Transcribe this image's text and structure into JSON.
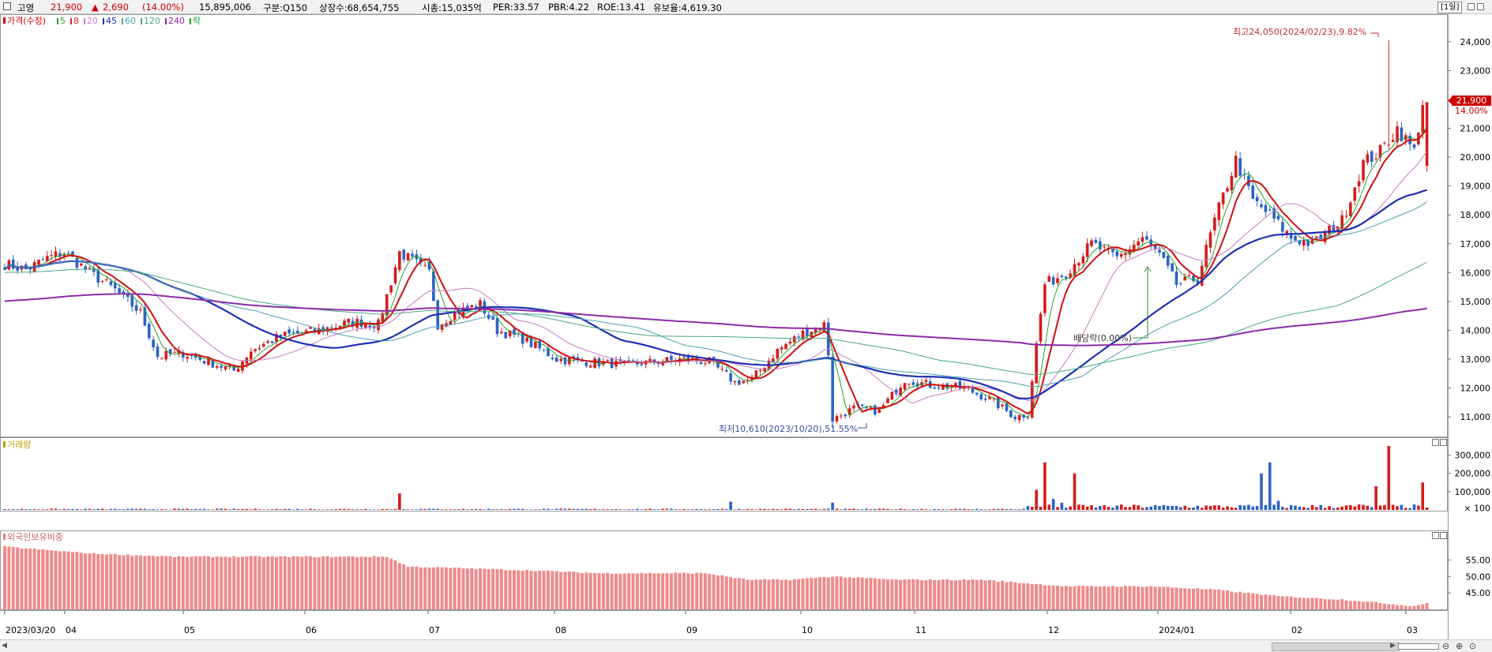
{
  "header": {
    "name": "고영",
    "price": "21,900",
    "change_arrow": "▲",
    "change": "2,690",
    "change_pct": "(14.00%)",
    "volume": "15,895,006",
    "market": "구분:Q150",
    "shares": "상장수:68,654,755",
    "cap": "시총:15,035억",
    "per": "PER:33.57",
    "pbr": "PBR:4.22",
    "roe": "ROE:13.41",
    "float": "유보율:4,619.30",
    "period": "[1일]"
  },
  "price_legend": {
    "main": "가격(수정)",
    "items": [
      {
        "label": "5",
        "color": "#2ca02c"
      },
      {
        "label": "8",
        "color": "#d62728"
      },
      {
        "label": "20",
        "color": "#c77cc3"
      },
      {
        "label": "45",
        "color": "#1f2fb4"
      },
      {
        "label": "60",
        "color": "#4a9fb0"
      },
      {
        "label": "120",
        "color": "#4aa882"
      },
      {
        "label": "240",
        "color": "#8b2ca8"
      },
      {
        "label": "락",
        "color": "#2ca02c"
      }
    ]
  },
  "volume_legend": "거래량",
  "foreign_legend": "외국인보유비중",
  "annotations": {
    "high": "최고24,050(2024/02/23),9.82%",
    "low": "최저10,610(2023/10/20),51.55%",
    "dividend": "배당락(0.00%)"
  },
  "last_price_label": "21,900",
  "last_pct_label": "14.00%",
  "chart_data": [
    {
      "type": "candlestick",
      "title": "가격(수정)",
      "ylim": [
        10400,
        24900
      ],
      "y_ticks": [
        11000,
        12000,
        13000,
        14000,
        15000,
        16000,
        17000,
        18000,
        19000,
        20000,
        21000,
        23000,
        24000
      ],
      "y_tick_labels": [
        "11,000",
        "12,000",
        "13,000",
        "14,000",
        "15,000",
        "16,000",
        "17,000",
        "18,000",
        "19,000",
        "20,000",
        "21,000",
        "23,000",
        "24,000"
      ],
      "x_tick_labels": [
        "2023/03/20",
        "04",
        "05",
        "06",
        "07",
        "08",
        "09",
        "10",
        "11",
        "12",
        "2024/01",
        "02",
        "03"
      ],
      "moving_averages": [
        5,
        8,
        20,
        45,
        60,
        120,
        240
      ],
      "close_path": [
        [
          0,
          16300
        ],
        [
          5,
          16100
        ],
        [
          10,
          16500
        ],
        [
          14,
          16700
        ],
        [
          20,
          16000
        ],
        [
          26,
          15400
        ],
        [
          32,
          14600
        ],
        [
          36,
          13100
        ],
        [
          42,
          13200
        ],
        [
          50,
          12800
        ],
        [
          54,
          12600
        ],
        [
          58,
          13300
        ],
        [
          65,
          13800
        ],
        [
          74,
          14000
        ],
        [
          82,
          14300
        ],
        [
          88,
          14200
        ],
        [
          93,
          16700
        ],
        [
          97,
          16300
        ],
        [
          100,
          16000
        ],
        [
          102,
          14200
        ],
        [
          106,
          14600
        ],
        [
          112,
          14900
        ],
        [
          116,
          14000
        ],
        [
          122,
          13700
        ],
        [
          130,
          13000
        ],
        [
          138,
          12900
        ],
        [
          146,
          12800
        ],
        [
          153,
          12900
        ],
        [
          160,
          13000
        ],
        [
          166,
          12900
        ],
        [
          172,
          12200
        ],
        [
          176,
          12300
        ],
        [
          182,
          13300
        ],
        [
          188,
          13900
        ],
        [
          193,
          14200
        ],
        [
          194,
          13200
        ],
        [
          195,
          10900
        ],
        [
          200,
          11300
        ],
        [
          206,
          11200
        ],
        [
          212,
          12300
        ],
        [
          218,
          12100
        ],
        [
          226,
          12000
        ],
        [
          232,
          11600
        ],
        [
          238,
          11000
        ],
        [
          241,
          11100
        ],
        [
          243,
          13500
        ],
        [
          245,
          15600
        ],
        [
          250,
          16000
        ],
        [
          256,
          17000
        ],
        [
          262,
          16500
        ],
        [
          268,
          17200
        ],
        [
          272,
          16600
        ],
        [
          276,
          15600
        ],
        [
          281,
          15800
        ],
        [
          285,
          17800
        ],
        [
          290,
          19900
        ],
        [
          294,
          18500
        ],
        [
          298,
          18000
        ],
        [
          303,
          17200
        ],
        [
          308,
          17000
        ],
        [
          315,
          17800
        ],
        [
          320,
          19800
        ],
        [
          324,
          20200
        ],
        [
          328,
          21000
        ],
        [
          332,
          20200
        ],
        [
          334,
          21900
        ]
      ],
      "high": {
        "value": 24050,
        "date": "2024/02/23"
      },
      "low": {
        "value": 10610,
        "date": "2023/10/20"
      },
      "last": 21900
    },
    {
      "type": "bar",
      "title": "거래량",
      "ylim": [
        0,
        380000
      ],
      "y_ticks": [
        100000,
        200000,
        300000
      ],
      "y_tick_labels": [
        "100,000",
        "200,000",
        "300,000"
      ],
      "min_label": "100",
      "spikes": [
        {
          "index": 93,
          "value": 90000
        },
        {
          "index": 171,
          "value": 45000
        },
        {
          "index": 195,
          "value": 40000
        },
        {
          "index": 243,
          "value": 110000
        },
        {
          "index": 245,
          "value": 260000
        },
        {
          "index": 247,
          "value": 60000
        },
        {
          "index": 249,
          "value": 40000
        },
        {
          "index": 252,
          "value": 200000
        },
        {
          "index": 296,
          "value": 200000
        },
        {
          "index": 298,
          "value": 260000
        },
        {
          "index": 300,
          "value": 50000
        },
        {
          "index": 326,
          "value": 350000
        },
        {
          "index": 323,
          "value": 130000
        },
        {
          "index": 319,
          "value": 30000
        },
        {
          "index": 334,
          "value": 150000
        }
      ]
    },
    {
      "type": "bar",
      "title": "외국인보유비중",
      "ylim": [
        40,
        63
      ],
      "y_ticks": [
        45,
        50,
        55
      ],
      "y_tick_labels": [
        "45.00",
        "50.00",
        "55.00"
      ],
      "path": [
        [
          0,
          59
        ],
        [
          20,
          57
        ],
        [
          40,
          56
        ],
        [
          90,
          56
        ],
        [
          95,
          53
        ],
        [
          120,
          52
        ],
        [
          140,
          51
        ],
        [
          165,
          51
        ],
        [
          175,
          49
        ],
        [
          185,
          49
        ],
        [
          195,
          50
        ],
        [
          210,
          49
        ],
        [
          230,
          49
        ],
        [
          250,
          47
        ],
        [
          270,
          47
        ],
        [
          285,
          46
        ],
        [
          300,
          44
        ],
        [
          315,
          43
        ],
        [
          332,
          41
        ],
        [
          335,
          42
        ]
      ]
    }
  ]
}
